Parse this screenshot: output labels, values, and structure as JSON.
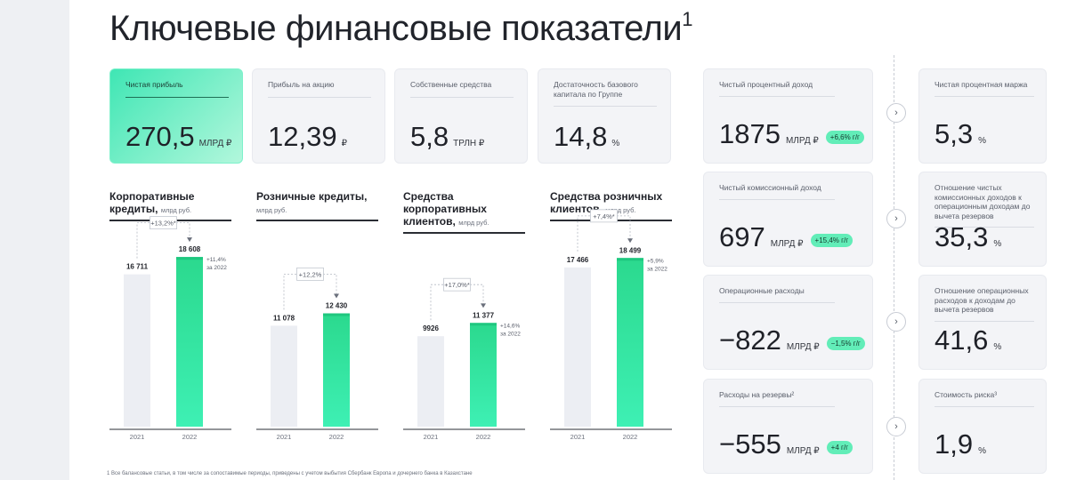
{
  "title": "Ключевые финансовые показатели",
  "title_footnote": "1",
  "metrics": [
    {
      "label": "Чистая прибыль",
      "value": "270,5",
      "unit": "МЛРД ₽"
    },
    {
      "label": "Прибыль на акцию",
      "value": "12,39",
      "unit": "₽"
    },
    {
      "label": "Собственные средства",
      "value": "5,8",
      "unit": "ТРЛН ₽"
    },
    {
      "label": "Достаточность базового капитала по Группе",
      "value": "14,8",
      "unit": "%"
    }
  ],
  "income": [
    {
      "label": "Чистый процентный доход",
      "value": "1875",
      "unit": "МЛРД ₽",
      "change": "+6,6% г/г"
    },
    {
      "label": "Чистый комиссионный доход",
      "value": "697",
      "unit": "МЛРД ₽",
      "change": "+15,4% г/г"
    },
    {
      "label": "Операционные расходы",
      "value": "−822",
      "unit": "МЛРД ₽",
      "change": "−1,5% г/г"
    },
    {
      "label": "Расходы на резервы²",
      "value": "−555",
      "unit": "МЛРД ₽",
      "change": "+4 г/г"
    }
  ],
  "ratios": [
    {
      "label": "Чистая процентная маржа",
      "value": "5,3",
      "unit": "%"
    },
    {
      "label": "Отношение чистых комиссионных доходов к операционным доходам до вычета резервов",
      "value": "35,3",
      "unit": "%"
    },
    {
      "label": "Отношение операционных расходов к доходам до вычета резервов",
      "value": "41,6",
      "unit": "%"
    },
    {
      "label": "Стоимость риска³",
      "value": "1,9",
      "unit": "%"
    }
  ],
  "icons": {
    "arrow": "chevron-right-icon"
  },
  "colors": {
    "accent": "#3fe6b4",
    "bar_2021": "#eceef3",
    "bar_2022_top": "#2bd98e",
    "bar_2022_bottom": "#3ef0b4"
  },
  "chart_data": [
    {
      "type": "bar",
      "title": "Корпоративные кредиты,",
      "unit_label": "млрд руб.",
      "categories": [
        "2021",
        "2022"
      ],
      "values": [
        16711,
        18608
      ],
      "value_labels": [
        "16 711",
        "18 608"
      ],
      "growth": "+13,2%*",
      "annotation": [
        "+11,4%",
        "за 2022"
      ]
    },
    {
      "type": "bar",
      "title": "Розничные кредиты,",
      "unit_label": "млрд руб.",
      "categories": [
        "2021",
        "2022"
      ],
      "values": [
        11078,
        12430
      ],
      "value_labels": [
        "11 078",
        "12 430"
      ],
      "growth": "+12,2%",
      "annotation": []
    },
    {
      "type": "bar",
      "title": "Средства корпоративных клиентов,",
      "unit_label": "млрд руб.",
      "categories": [
        "2021",
        "2022"
      ],
      "values": [
        9926,
        11377
      ],
      "value_labels": [
        "9926",
        "11 377"
      ],
      "growth": "+17,0%*",
      "annotation": [
        "+14,6%",
        "за 2022"
      ]
    },
    {
      "type": "bar",
      "title": "Средства розничных клиентов,",
      "unit_label": "млрд руб.",
      "categories": [
        "2021",
        "2022"
      ],
      "values": [
        17466,
        18499
      ],
      "value_labels": [
        "17 466",
        "18 499"
      ],
      "growth": "+7,4%*",
      "annotation": [
        "+5,9%",
        "за 2022"
      ]
    }
  ],
  "footnote": "1    Все балансовые статьи, в том числе за сопоставимые периоды, приведены с учетом выбытия Сбербанк Европа и дочернего банка в Казахстане"
}
